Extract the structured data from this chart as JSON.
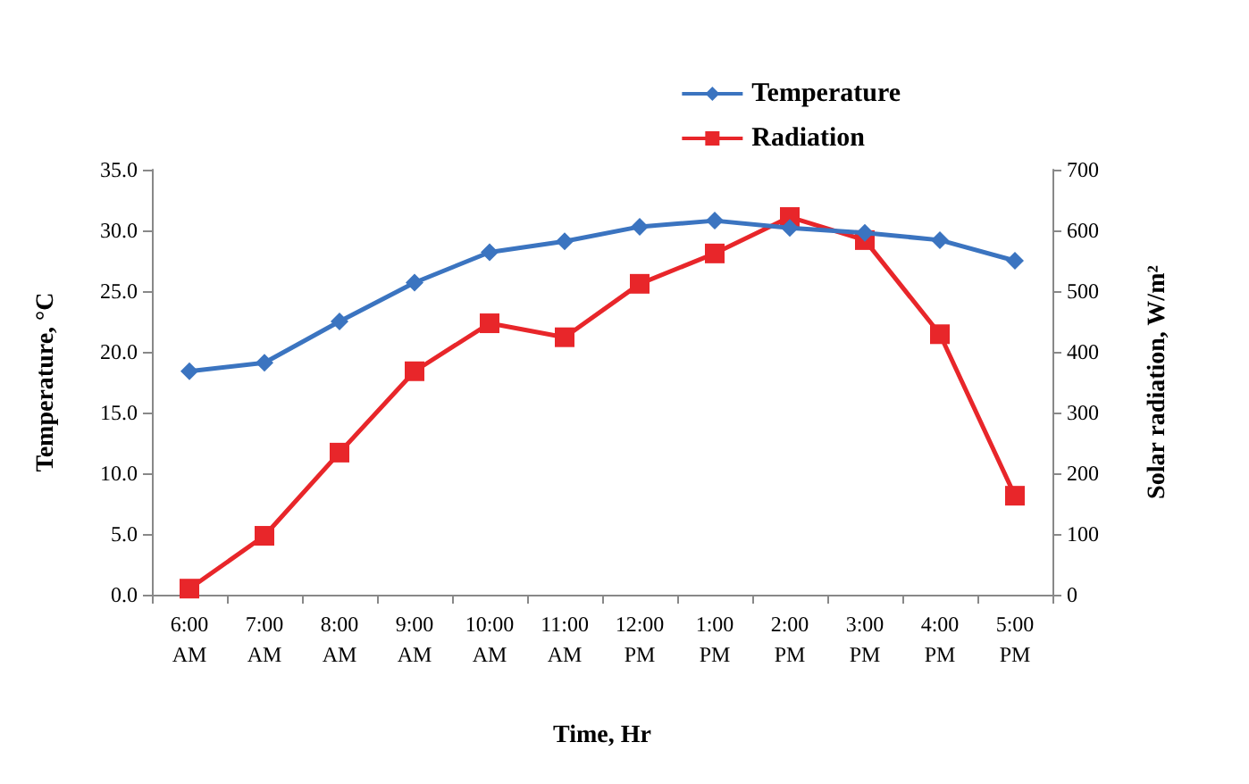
{
  "chart_data": {
    "type": "line",
    "xlabel": "Time, Hr",
    "ylabel": "Temperature, °C",
    "y2label": "Solar radiation, W/m²",
    "categories": [
      "6:00 AM",
      "7:00 AM",
      "8:00 AM",
      "9:00 AM",
      "10:00 AM",
      "11:00 AM",
      "12:00 PM",
      "1:00 PM",
      "2:00 PM",
      "3:00 PM",
      "4:00 PM",
      "5:00 PM"
    ],
    "series": [
      {
        "name": "Temperature",
        "color": "#3b74c0",
        "marker": "diamond",
        "values": [
          18.4,
          19.1,
          22.5,
          25.7,
          28.2,
          29.1,
          30.3,
          30.8,
          30.2,
          29.8,
          29.2,
          27.5
        ]
      },
      {
        "name": "Radiation",
        "color": "#e8262a",
        "marker": "square",
        "axis": "y2",
        "values": [
          10,
          97,
          234,
          368,
          447,
          424,
          512,
          562,
          622,
          584,
          429,
          163
        ]
      }
    ],
    "ylim": [
      0,
      35
    ],
    "yticks": [
      {
        "value": 0,
        "label": "0.0"
      },
      {
        "value": 5,
        "label": "5.0"
      },
      {
        "value": 10,
        "label": "10.0"
      },
      {
        "value": 15,
        "label": "15.0"
      },
      {
        "value": 20,
        "label": "20.0"
      },
      {
        "value": 25,
        "label": "25.0"
      },
      {
        "value": 30,
        "label": "30.0"
      },
      {
        "value": 35,
        "label": "35.0"
      }
    ],
    "y2lim": [
      0,
      700
    ],
    "y2ticks": [
      0,
      100,
      200,
      300,
      400,
      500,
      600,
      700
    ],
    "legend": "top right",
    "grid": false
  }
}
